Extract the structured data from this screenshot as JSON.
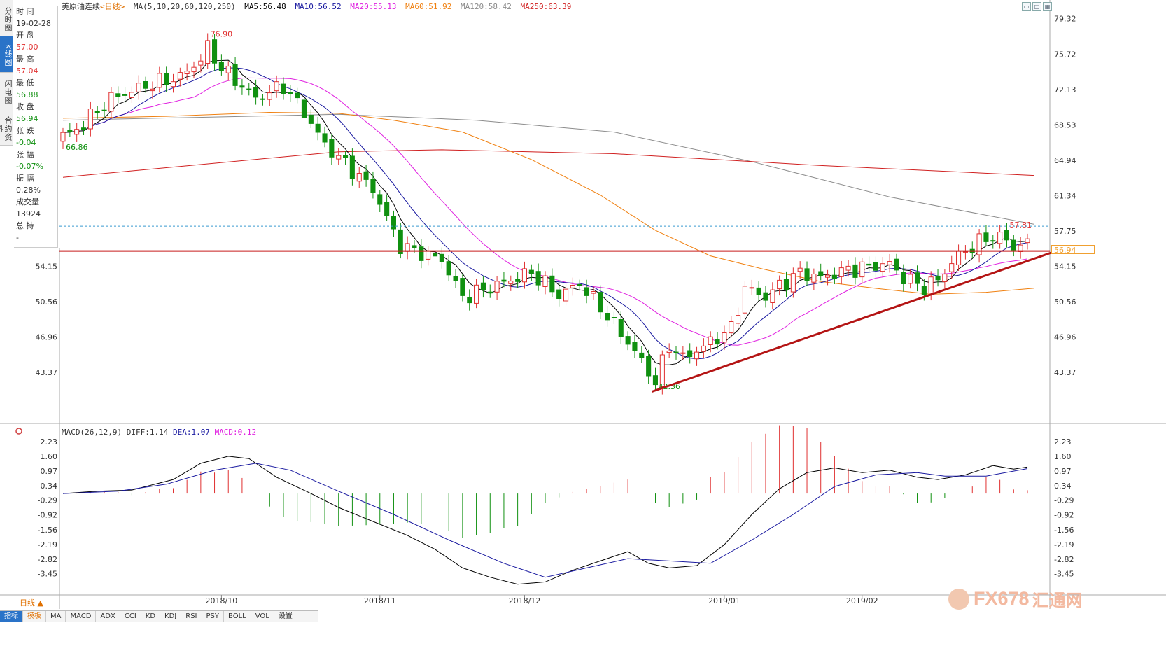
{
  "legend": {
    "title": "美原油连续",
    "period_tag": "<日线>",
    "ma_params": "MA(5,10,20,60,120,250)",
    "ma5": "MA5:56.48",
    "ma10": "MA10:56.52",
    "ma20": "MA20:55.13",
    "ma60": "MA60:51.92",
    "ma120": "MA120:58.42",
    "ma250": "MA250:63.39"
  },
  "macd_legend": {
    "params": "MACD(26,12,9)",
    "diff": "DIFF:1.14",
    "dea": "DEA:1.07",
    "macd": "MACD:0.12"
  },
  "side_tabs": [
    "分时图",
    "K线图",
    "闪电图",
    "合约资料"
  ],
  "info_panel": {
    "time_label": "时 间",
    "time_value": "19-02-28",
    "open_label": "开 盘",
    "open_value": "57.00",
    "high_label": "最 高",
    "high_value": "57.04",
    "low_label": "最 低",
    "low_value": "56.88",
    "close_label": "收 盘",
    "close_value": "56.94",
    "change_label": "张 跌",
    "change_value": "-0.04",
    "pct_label": "张 幅",
    "pct_value": "-0.07%",
    "amp_label": "振 幅",
    "amp_value": "0.28%",
    "vol_label": "成交量",
    "vol_value": "13924",
    "oi_label": "总 持",
    "oi_value": "-"
  },
  "value_box": "56.94",
  "period_button": "日线 ▲",
  "bottom_tabs": [
    "指标",
    "模板",
    "MA",
    "MACD",
    "ADX",
    "CCI",
    "KD",
    "KDJ",
    "RSI",
    "PSY",
    "BOLL",
    "VOL",
    "设置"
  ],
  "watermark": {
    "brand": "FX678",
    "cn": "汇通网"
  },
  "colors": {
    "up": "#e03030",
    "down": "#109010",
    "ma5": "#000000",
    "ma10": "#1a1aa0",
    "ma20": "#e020e0",
    "ma60": "#f08010",
    "ma120": "#8c8c8c",
    "ma250": "#d02020",
    "support_line": "#c81e1e",
    "trend_line": "#b41414"
  },
  "chart_data": {
    "type": "candlestick",
    "x_ticks": [
      "2018/10",
      "2018/11",
      "2018/12",
      "2019/01",
      "2019/02"
    ],
    "y_ticks_left": [
      "54.15",
      "50.56",
      "46.96",
      "43.37"
    ],
    "y_ticks_right": [
      "79.32",
      "75.72",
      "72.13",
      "68.53",
      "64.94",
      "61.34",
      "57.75",
      "54.15",
      "50.56",
      "46.96",
      "43.37"
    ],
    "y_range": [
      39.8,
      79.8
    ],
    "annotations": {
      "high": "76.90",
      "low": "42.36",
      "start_low": "66.86",
      "recent_high": "57.81"
    },
    "anchors": [
      [
        0,
        66.86
      ],
      [
        7,
        71.2
      ],
      [
        12,
        72.5
      ],
      [
        17,
        73.4
      ],
      [
        20,
        75.2
      ],
      [
        21,
        76.4
      ],
      [
        23,
        74.3
      ],
      [
        28,
        71.2
      ],
      [
        32,
        72.5
      ],
      [
        35,
        69.8
      ],
      [
        38,
        66.5
      ],
      [
        45,
        62.0
      ],
      [
        49,
        56.2
      ],
      [
        55,
        54.8
      ],
      [
        58,
        51.0
      ],
      [
        62,
        52.0
      ],
      [
        68,
        53.5
      ],
      [
        72,
        51.2
      ],
      [
        75,
        52.4
      ],
      [
        79,
        49.1
      ],
      [
        83,
        45.5
      ],
      [
        86,
        42.36
      ],
      [
        88,
        46.2
      ],
      [
        90,
        44.8
      ],
      [
        93,
        46.0
      ],
      [
        97,
        47.8
      ],
      [
        99,
        52.0
      ],
      [
        102,
        51.0
      ],
      [
        104,
        52.2
      ],
      [
        107,
        53.5
      ],
      [
        110,
        53.0
      ],
      [
        114,
        53.8
      ],
      [
        118,
        54.2
      ],
      [
        120,
        54.4
      ],
      [
        122,
        53.0
      ],
      [
        125,
        52.0
      ],
      [
        127,
        52.8
      ],
      [
        130,
        55.3
      ],
      [
        133,
        56.6
      ],
      [
        135,
        57.2
      ],
      [
        137,
        56.9
      ],
      [
        138,
        56.0
      ],
      [
        140,
        56.94
      ]
    ],
    "ma_lines": [
      {
        "name": "MA120",
        "points": [
          [
            0,
            69.0
          ],
          [
            40,
            69.6
          ],
          [
            60,
            69.0
          ],
          [
            80,
            67.8
          ],
          [
            100,
            64.8
          ],
          [
            120,
            61.2
          ],
          [
            141,
            58.42
          ]
        ]
      },
      {
        "name": "MA250",
        "points": [
          [
            0,
            63.2
          ],
          [
            40,
            65.8
          ],
          [
            55,
            66.0
          ],
          [
            80,
            65.6
          ],
          [
            110,
            64.4
          ],
          [
            141,
            63.39
          ]
        ]
      },
      {
        "name": "MA60",
        "points": [
          [
            0,
            69.2
          ],
          [
            15,
            69.4
          ],
          [
            30,
            69.8
          ],
          [
            40,
            69.7
          ],
          [
            48,
            69.0
          ],
          [
            58,
            67.8
          ],
          [
            68,
            65.0
          ],
          [
            78,
            61.4
          ],
          [
            86,
            57.8
          ],
          [
            94,
            55.2
          ],
          [
            102,
            53.8
          ],
          [
            110,
            52.6
          ],
          [
            118,
            51.9
          ],
          [
            126,
            51.3
          ],
          [
            134,
            51.5
          ],
          [
            141,
            51.92
          ]
        ]
      }
    ],
    "macd": {
      "y_ticks": [
        "2.23",
        "1.60",
        "0.97",
        "0.34",
        "-0.29",
        "-0.92",
        "-1.56",
        "-2.19",
        "-2.82",
        "-3.45"
      ],
      "y_range": [
        -4.0,
        2.5
      ],
      "diff": [
        [
          0,
          0.0
        ],
        [
          5,
          0.1
        ],
        [
          10,
          0.15
        ],
        [
          16,
          0.6
        ],
        [
          20,
          1.3
        ],
        [
          24,
          1.6
        ],
        [
          27,
          1.5
        ],
        [
          31,
          0.7
        ],
        [
          36,
          0.0
        ],
        [
          40,
          -0.6
        ],
        [
          45,
          -1.2
        ],
        [
          50,
          -1.8
        ],
        [
          54,
          -2.4
        ],
        [
          58,
          -3.2
        ],
        [
          62,
          -3.6
        ],
        [
          66,
          -3.9
        ],
        [
          70,
          -3.8
        ],
        [
          74,
          -3.3
        ],
        [
          78,
          -2.9
        ],
        [
          82,
          -2.5
        ],
        [
          85,
          -3.0
        ],
        [
          88,
          -3.2
        ],
        [
          92,
          -3.1
        ],
        [
          96,
          -2.2
        ],
        [
          100,
          -0.9
        ],
        [
          104,
          0.2
        ],
        [
          108,
          0.9
        ],
        [
          112,
          1.1
        ],
        [
          116,
          0.9
        ],
        [
          120,
          1.0
        ],
        [
          124,
          0.7
        ],
        [
          127,
          0.6
        ],
        [
          131,
          0.8
        ],
        [
          135,
          1.2
        ],
        [
          138,
          1.05
        ],
        [
          140,
          1.14
        ]
      ],
      "dea": [
        [
          0,
          0.0
        ],
        [
          8,
          0.1
        ],
        [
          15,
          0.4
        ],
        [
          22,
          1.0
        ],
        [
          28,
          1.3
        ],
        [
          33,
          1.0
        ],
        [
          40,
          0.1
        ],
        [
          48,
          -0.9
        ],
        [
          56,
          -2.0
        ],
        [
          64,
          -3.0
        ],
        [
          70,
          -3.6
        ],
        [
          76,
          -3.2
        ],
        [
          82,
          -2.8
        ],
        [
          88,
          -2.9
        ],
        [
          94,
          -3.0
        ],
        [
          100,
          -2.0
        ],
        [
          106,
          -0.9
        ],
        [
          112,
          0.3
        ],
        [
          118,
          0.8
        ],
        [
          124,
          0.9
        ],
        [
          128,
          0.75
        ],
        [
          134,
          0.75
        ],
        [
          140,
          1.07
        ]
      ]
    }
  }
}
